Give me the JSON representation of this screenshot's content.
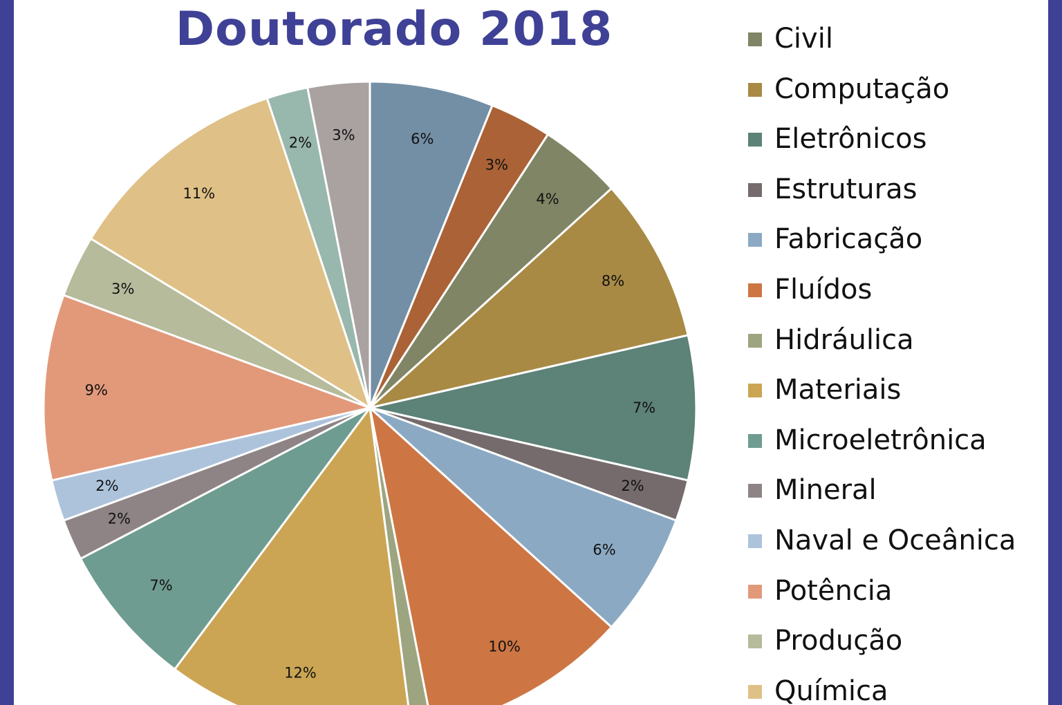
{
  "chart_data": {
    "type": "pie",
    "title": "Doutorado 2018",
    "slices": [
      {
        "label": "6%",
        "value": 6,
        "color": "#738fa6"
      },
      {
        "label": "3%",
        "value": 3,
        "color": "#aa6236"
      },
      {
        "label": "4%",
        "value": 4,
        "color": "#808565"
      },
      {
        "label": "8%",
        "value": 8,
        "color": "#a88a45"
      },
      {
        "label": "7%",
        "value": 7,
        "color": "#5d8277"
      },
      {
        "label": "2%",
        "value": 2,
        "color": "#756b6d"
      },
      {
        "label": "6%",
        "value": 6,
        "color": "#8ba9c3"
      },
      {
        "label": "10%",
        "value": 10,
        "color": "#cd7644"
      },
      {
        "label": "",
        "value": 1,
        "color": "#9da580"
      },
      {
        "label": "12%",
        "value": 12,
        "color": "#cba553"
      },
      {
        "label": "7%",
        "value": 7,
        "color": "#6f9c90"
      },
      {
        "label": "2%",
        "value": 2,
        "color": "#8e8485"
      },
      {
        "label": "2%",
        "value": 2,
        "color": "#adc3dc"
      },
      {
        "label": "9%",
        "value": 9,
        "color": "#e2997a"
      },
      {
        "label": "3%",
        "value": 3,
        "color": "#b5bb9b"
      },
      {
        "label": "11%",
        "value": 11,
        "color": "#dfc086"
      },
      {
        "label": "2%",
        "value": 2,
        "color": "#98b7ad"
      },
      {
        "label": "3%",
        "value": 3,
        "color": "#a9a2a1"
      }
    ],
    "legend": [
      {
        "name": "Civil",
        "color": "#808565"
      },
      {
        "name": "Computação",
        "color": "#a88a45"
      },
      {
        "name": "Eletrônicos",
        "color": "#5d8277"
      },
      {
        "name": "Estruturas",
        "color": "#756b6d"
      },
      {
        "name": "Fabricação",
        "color": "#8ba9c3"
      },
      {
        "name": "Fluídos",
        "color": "#cd7644"
      },
      {
        "name": "Hidráulica",
        "color": "#9da580"
      },
      {
        "name": "Materiais",
        "color": "#cba553"
      },
      {
        "name": "Microeletrônica",
        "color": "#6f9c90"
      },
      {
        "name": "Mineral",
        "color": "#8e8485"
      },
      {
        "name": "Naval e Oceânica",
        "color": "#adc3dc"
      },
      {
        "name": "Potência",
        "color": "#e2997a"
      },
      {
        "name": "Produção",
        "color": "#b5bb9b"
      },
      {
        "name": "Química",
        "color": "#dfc086"
      }
    ],
    "legend_position": "right",
    "frame_color": "#3f4196"
  }
}
